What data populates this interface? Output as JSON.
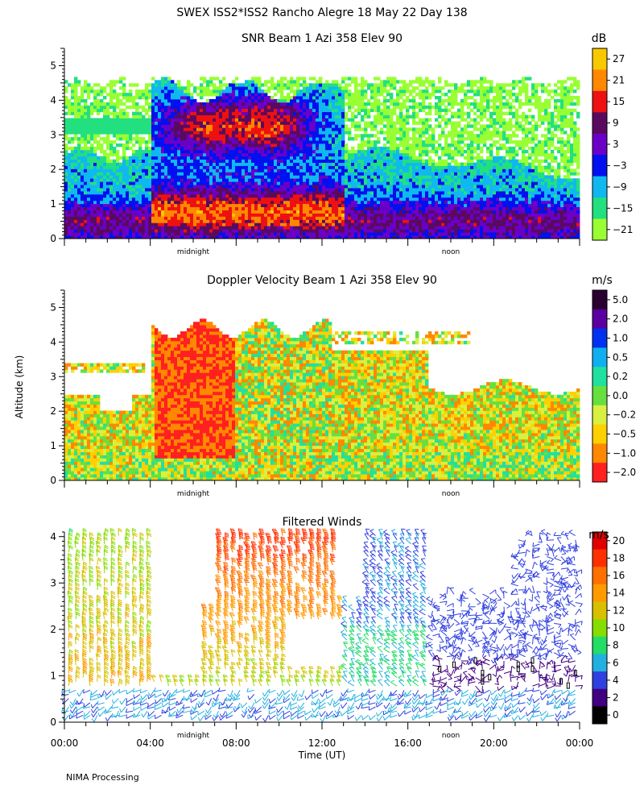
{
  "title": "SWEX ISS2*ISS2 Rancho Alegre  18 May 22 Day 138",
  "footer": "NIMA Processing",
  "chart_data": [
    {
      "type": "heatmap",
      "id": "snr",
      "title": "SNR Beam 1 Azi 358 Elev 90",
      "ylabel": "",
      "ylim": [
        0,
        5.5
      ],
      "yticks": [
        0,
        1,
        2,
        3,
        4,
        5
      ],
      "xlim": [
        0,
        24
      ],
      "marker_labels": [
        {
          "hour": 6,
          "label": "midnight"
        },
        {
          "hour": 18,
          "label": "noon"
        }
      ],
      "colorbar": {
        "unit": "dB",
        "labels": [
          "27",
          "21",
          "15",
          "9",
          "3",
          "−3",
          "−9",
          "−15",
          "−21"
        ],
        "colors": [
          "#f8c800",
          "#ff8800",
          "#ee1111",
          "#5a0a5e",
          "#6a00c8",
          "#0010f0",
          "#10b8f0",
          "#22e080",
          "#99ff33"
        ]
      },
      "features": {
        "boundary_layer_top_km": 1.2,
        "storm_start_hour": 4,
        "storm_end_hour": 13,
        "cloud_top_km": 4.6,
        "residual_layer_km": 3.3
      }
    },
    {
      "type": "heatmap",
      "id": "doppler",
      "title": "Doppler Velocity Beam 1 Azi 358 Elev 90",
      "ylabel": "Altitude (km)",
      "ylim": [
        0,
        5.5
      ],
      "yticks": [
        0,
        1,
        2,
        3,
        4,
        5
      ],
      "xlim": [
        0,
        24
      ],
      "marker_labels": [
        {
          "hour": 6,
          "label": "midnight"
        },
        {
          "hour": 18,
          "label": "noon"
        }
      ],
      "colorbar": {
        "unit": "m/s",
        "labels": [
          "5.0",
          "2.0",
          "1.0",
          "0.5",
          "0.2",
          "0.0",
          "−0.2",
          "−0.5",
          "−1.0",
          "−2.0"
        ],
        "colors": [
          "#2a0030",
          "#5a00a0",
          "#0030f0",
          "#10b0f0",
          "#20e0a0",
          "#66e040",
          "#d8f040",
          "#ffd000",
          "#ff8800",
          "#ff2020"
        ]
      },
      "features": {
        "downdraft_start_hour": 4.2,
        "downdraft_end_hour": 8.0,
        "echo_top_km": 4.6
      }
    },
    {
      "type": "wind_barbs",
      "id": "winds",
      "title": "Filtered Winds",
      "ylabel": "",
      "xlabel": "Time (UT)",
      "ylim": [
        0,
        4.1
      ],
      "yticks": [
        0,
        1,
        2,
        3,
        4
      ],
      "xlim": [
        0,
        24
      ],
      "xticks": [
        "00:00",
        "04:00",
        "08:00",
        "12:00",
        "16:00",
        "20:00",
        "00:00"
      ],
      "marker_labels": [
        {
          "hour": 6,
          "label": "midnight"
        },
        {
          "hour": 18,
          "label": "noon"
        }
      ],
      "colorbar": {
        "unit": "m/s",
        "labels": [
          "20",
          "18",
          "16",
          "14",
          "12",
          "10",
          "8",
          "6",
          "4",
          "2",
          "0"
        ],
        "colors": [
          "#e00000",
          "#ff3000",
          "#ff7000",
          "#ff9a00",
          "#d8c000",
          "#88dd00",
          "#22dd66",
          "#22b0e0",
          "#3040e0",
          "#400080",
          "#000000"
        ]
      },
      "speed_max": 21
    }
  ]
}
